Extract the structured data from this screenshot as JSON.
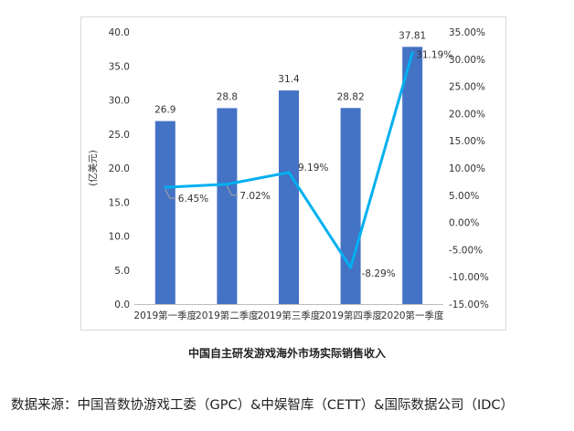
{
  "caption": "中国自主研发游戏海外市场实际销售收入",
  "source": "数据来源：中国音数协游戏工委（GPC）&中娱智库（CETT）&国际数据公司（IDC）",
  "chart_data": {
    "type": "bar",
    "categories": [
      "2019第一季度",
      "2019第二季度",
      "2019第三季度",
      "2019第四季度",
      "2020第一季度"
    ],
    "series": [
      {
        "type": "bar",
        "axis": "left",
        "values": [
          26.9,
          28.8,
          31.4,
          28.82,
          37.81
        ],
        "labels": [
          "26.9",
          "28.8",
          "31.4",
          "28.82",
          "37.81"
        ]
      },
      {
        "type": "line",
        "axis": "right",
        "values": [
          6.45,
          7.02,
          9.19,
          -8.29,
          31.19
        ],
        "labels": [
          "6.45%",
          "7.02%",
          "9.19%",
          "-8.29%",
          "31.19%"
        ]
      }
    ],
    "ylabel": "(亿美元)",
    "ylim": [
      0,
      40
    ],
    "yticks": [
      "0.0",
      "5.0",
      "10.0",
      "15.0",
      "20.0",
      "25.0",
      "30.0",
      "35.0",
      "40.0"
    ],
    "y2lim": [
      -15,
      35
    ],
    "y2ticks": [
      "-15.00%",
      "-10.00%",
      "-5.00%",
      "0.00%",
      "5.00%",
      "10.00%",
      "15.00%",
      "20.00%",
      "25.00%",
      "30.00%",
      "35.00%"
    ],
    "grid": false,
    "colors": {
      "bar": "#4472c4",
      "line": "#00b0f0"
    }
  }
}
